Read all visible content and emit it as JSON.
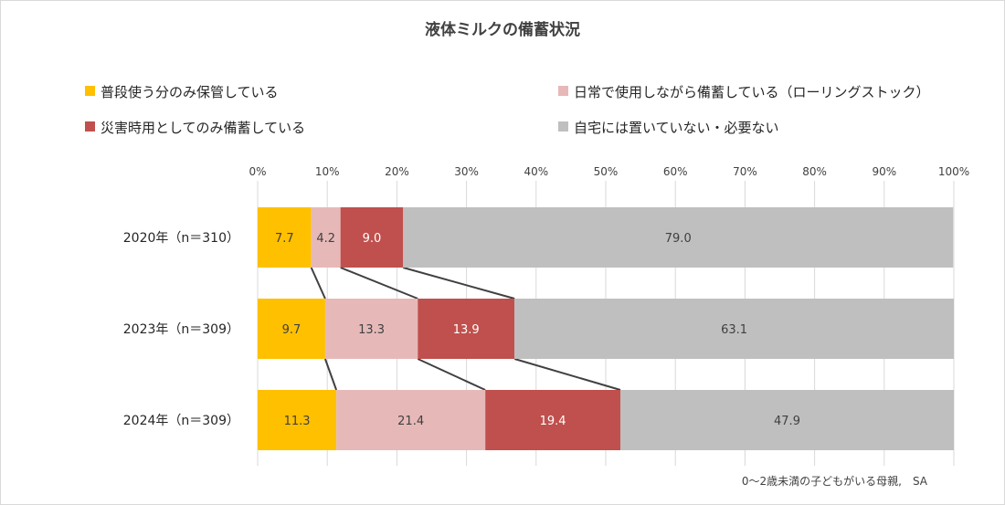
{
  "chart_data": {
    "type": "bar",
    "orientation": "horizontal",
    "stacked": "100%",
    "title": "液体ミルクの備蓄状況",
    "categories": [
      "2020年（n＝310）",
      "2023年（n＝309）",
      "2024年（n＝309）"
    ],
    "series": [
      {
        "name": "普段使う分のみ保管している",
        "values": [
          7.7,
          9.7,
          11.3
        ],
        "color": "#FFC000",
        "label_color": "#404040"
      },
      {
        "name": "日常で使用しながら備蓄している（ローリングストック）",
        "values": [
          4.2,
          13.3,
          21.4
        ],
        "color": "#E6B9B8",
        "label_color": "#404040"
      },
      {
        "name": "災害時用としてのみ備蓄している",
        "values": [
          9.0,
          13.9,
          19.4
        ],
        "color": "#C0504D",
        "label_color": "#FFFFFF"
      },
      {
        "name": "自宅には置いていない・必要ない",
        "values": [
          79.0,
          63.1,
          47.9
        ],
        "color": "#BFBFBF",
        "label_color": "#404040"
      }
    ],
    "value_labels": [
      [
        "7.7",
        "9.7",
        "11.3"
      ],
      [
        "4.2",
        "13.3",
        "21.4"
      ],
      [
        "9.0",
        "13.9",
        "19.4"
      ],
      [
        "79.0",
        "63.1",
        "47.9"
      ]
    ],
    "xlim": [
      0,
      100
    ],
    "xticks": [
      "0%",
      "10%",
      "20%",
      "30%",
      "40%",
      "50%",
      "60%",
      "70%",
      "80%",
      "90%",
      "100%"
    ],
    "x_axis_position": "top",
    "grid": true,
    "legend_position": "top",
    "series_lines": true,
    "note": "0～2歳未満の子どもがいる母親,　SA"
  }
}
